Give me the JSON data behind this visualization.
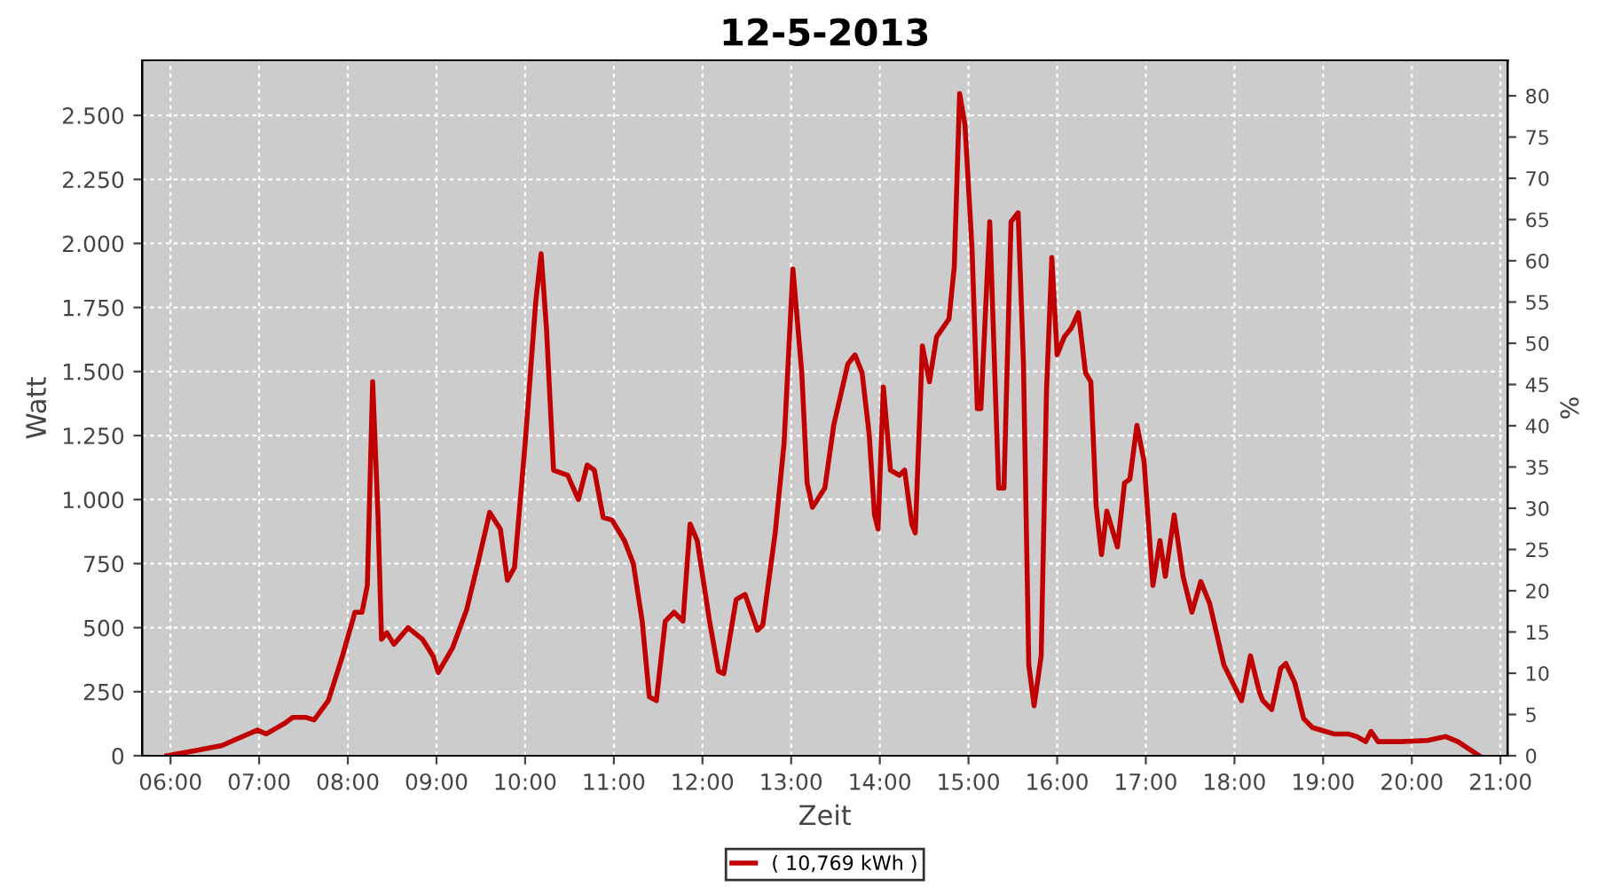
{
  "chart_data": {
    "type": "line",
    "title": "12-5-2013",
    "xlabel": "Zeit",
    "ylabel": "Watt",
    "y2label": "%",
    "x": [
      5.96,
      6.28,
      6.58,
      6.78,
      6.98,
      7.08,
      7.28,
      7.38,
      7.52,
      7.62,
      7.78,
      7.94,
      8.08,
      8.16,
      8.22,
      8.28,
      8.34,
      8.38,
      8.44,
      8.52,
      8.68,
      8.84,
      8.96,
      9.02,
      9.18,
      9.34,
      9.48,
      9.6,
      9.72,
      9.8,
      9.88,
      10.0,
      10.12,
      10.18,
      10.24,
      10.32,
      10.48,
      10.6,
      10.7,
      10.78,
      10.88,
      10.98,
      11.12,
      11.22,
      11.32,
      11.4,
      11.48,
      11.58,
      11.68,
      11.78,
      11.86,
      11.94,
      12.08,
      12.18,
      12.24,
      12.38,
      12.48,
      12.62,
      12.68,
      12.82,
      12.92,
      13.02,
      13.12,
      13.18,
      13.24,
      13.38,
      13.48,
      13.64,
      13.72,
      13.8,
      13.88,
      13.94,
      13.98,
      14.04,
      14.12,
      14.22,
      14.28,
      14.36,
      14.4,
      14.48,
      14.56,
      14.64,
      14.78,
      14.84,
      14.9,
      14.96,
      15.04,
      15.1,
      15.14,
      15.24,
      15.34,
      15.4,
      15.48,
      15.56,
      15.62,
      15.68,
      15.74,
      15.82,
      15.88,
      15.94,
      16.0,
      16.08,
      16.16,
      16.24,
      16.32,
      16.38,
      16.44,
      16.5,
      16.56,
      16.68,
      16.76,
      16.82,
      16.9,
      16.98,
      17.08,
      17.16,
      17.22,
      17.32,
      17.42,
      17.52,
      17.62,
      17.72,
      17.88,
      18.08,
      18.18,
      18.28,
      18.32,
      18.42,
      18.52,
      18.58,
      18.68,
      18.78,
      18.88,
      19.12,
      19.28,
      19.38,
      19.48,
      19.54,
      19.62,
      19.88,
      20.18,
      20.38,
      20.52,
      20.76
    ],
    "series": [
      {
        "name": "( 10,769 kWh )",
        "color": "#c00000",
        "values": [
          0,
          20,
          40,
          70,
          100,
          85,
          125,
          150,
          150,
          140,
          215,
          390,
          560,
          560,
          665,
          1460,
          940,
          455,
          480,
          435,
          500,
          455,
          390,
          325,
          420,
          570,
          770,
          950,
          885,
          685,
          735,
          1220,
          1775,
          1960,
          1670,
          1115,
          1095,
          1000,
          1135,
          1115,
          930,
          920,
          840,
          750,
          525,
          230,
          215,
          525,
          560,
          525,
          905,
          840,
          525,
          330,
          320,
          610,
          630,
          490,
          510,
          870,
          1220,
          1900,
          1495,
          1065,
          970,
          1045,
          1290,
          1530,
          1565,
          1495,
          1255,
          940,
          885,
          1440,
          1115,
          1095,
          1115,
          905,
          870,
          1600,
          1460,
          1635,
          1705,
          1910,
          2585,
          2465,
          1980,
          1355,
          1355,
          2085,
          1045,
          1045,
          2085,
          2120,
          1530,
          355,
          195,
          390,
          1425,
          1945,
          1565,
          1635,
          1670,
          1730,
          1495,
          1460,
          975,
          785,
          955,
          815,
          1065,
          1080,
          1290,
          1150,
          665,
          840,
          700,
          940,
          700,
          560,
          680,
          595,
          355,
          215,
          390,
          250,
          215,
          180,
          340,
          360,
          285,
          145,
          110,
          85,
          85,
          75,
          55,
          95,
          55,
          55,
          60,
          75,
          55,
          0
        ]
      }
    ],
    "xlim": [
      5.68,
      21.08
    ],
    "xticks": [
      {
        "value": 6,
        "label": "06:00"
      },
      {
        "value": 7,
        "label": "07:00"
      },
      {
        "value": 8,
        "label": "08:00"
      },
      {
        "value": 9,
        "label": "09:00"
      },
      {
        "value": 10,
        "label": "10:00"
      },
      {
        "value": 11,
        "label": "11:00"
      },
      {
        "value": 12,
        "label": "12:00"
      },
      {
        "value": 13,
        "label": "13:00"
      },
      {
        "value": 14,
        "label": "14:00"
      },
      {
        "value": 15,
        "label": "15:00"
      },
      {
        "value": 16,
        "label": "16:00"
      },
      {
        "value": 17,
        "label": "17:00"
      },
      {
        "value": 18,
        "label": "18:00"
      },
      {
        "value": 19,
        "label": "19:00"
      },
      {
        "value": 20,
        "label": "20:00"
      },
      {
        "value": 21,
        "label": "21:00"
      }
    ],
    "ylim": [
      0,
      2715
    ],
    "yticks": [
      0,
      {
        "value": 250,
        "label": "250"
      },
      {
        "value": 500,
        "label": "500"
      },
      {
        "value": 750,
        "label": "750"
      },
      {
        "value": 1000,
        "label": "1.000"
      },
      {
        "value": 1250,
        "label": "1.250"
      },
      {
        "value": 1500,
        "label": "1.500"
      },
      {
        "value": 1750,
        "label": "1.750"
      },
      {
        "value": 2000,
        "label": "2.000"
      },
      {
        "value": 2250,
        "label": "2.250"
      },
      {
        "value": 2500,
        "label": "2.500"
      }
    ],
    "y2lim": [
      0,
      84.3
    ],
    "y2ticks": [
      0,
      5,
      10,
      15,
      20,
      25,
      30,
      35,
      40,
      45,
      50,
      55,
      60,
      65,
      70,
      75,
      80
    ],
    "grid": true,
    "legend": "bottom",
    "marker": "none",
    "line_style": "solid"
  }
}
